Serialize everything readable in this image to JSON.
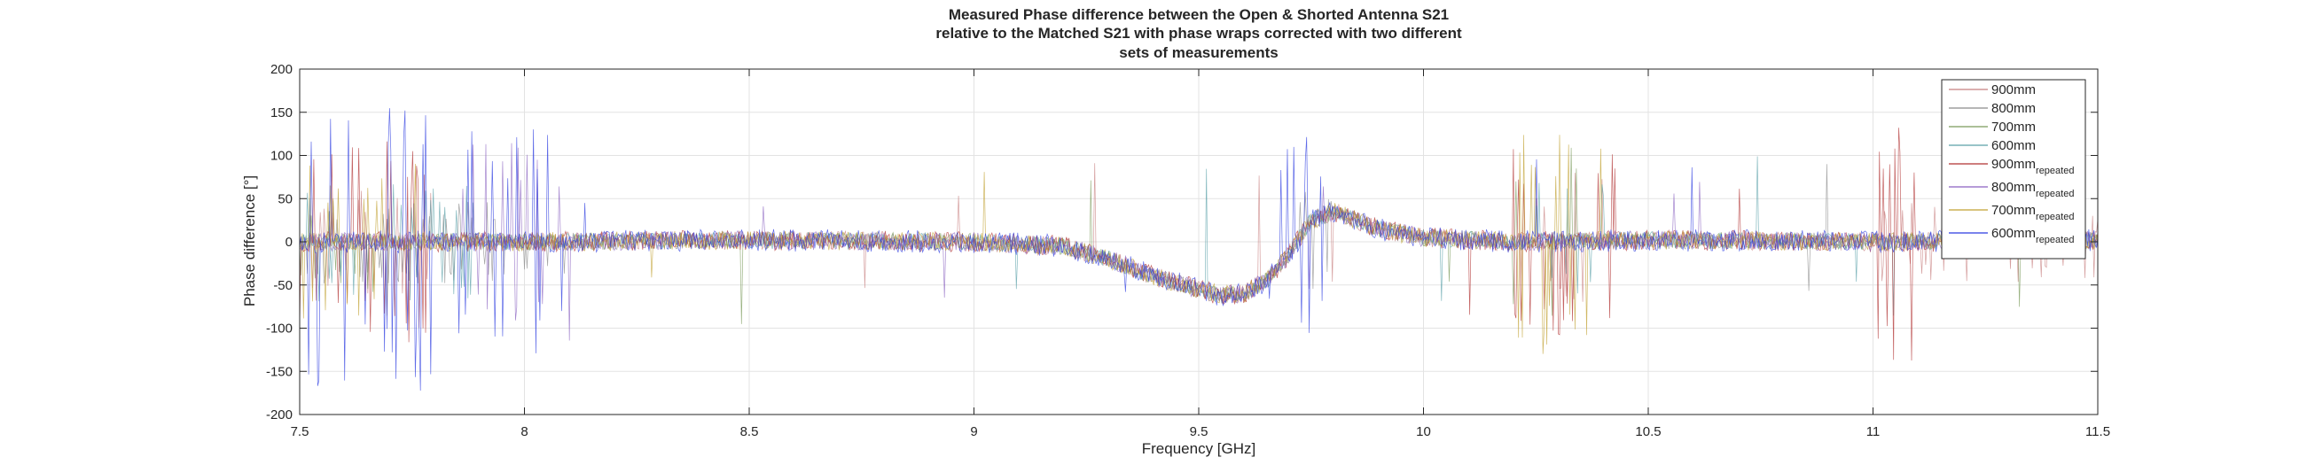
{
  "chart_data": {
    "type": "line",
    "title_lines": [
      "Measured Phase difference between the Open & Shorted Antenna S21",
      "relative to the Matched S21 with phase wraps corrected with two different",
      "sets of measurements"
    ],
    "xlabel": "Frequency [GHz]",
    "ylabel": "Phase difference [°]",
    "xlim": [
      7.5,
      11.5
    ],
    "ylim": [
      -200,
      200
    ],
    "xticks": [
      7.5,
      8,
      8.5,
      9,
      9.5,
      10,
      10.5,
      11,
      11.5
    ],
    "xtick_labels": [
      "7.5",
      "8",
      "8.5",
      "9",
      "9.5",
      "10",
      "10.5",
      "11",
      "11.5"
    ],
    "yticks": [
      200,
      150,
      100,
      50,
      0,
      -50,
      -100,
      -150,
      -200
    ],
    "ytick_labels": [
      "200",
      "150",
      "100",
      "50",
      "0",
      "-50",
      "-100",
      "-150",
      "-200"
    ],
    "grid": true,
    "legend_position": "top-right",
    "baseline_trend": {
      "x": [
        7.5,
        8.0,
        8.5,
        9.0,
        9.2,
        9.3,
        9.4,
        9.5,
        9.55,
        9.6,
        9.65,
        9.7,
        9.75,
        9.8,
        9.9,
        10.0,
        10.2,
        10.5,
        11.0,
        11.5
      ],
      "y": [
        0,
        0,
        2,
        0,
        -5,
        -20,
        -40,
        -55,
        -62,
        -60,
        -45,
        -15,
        25,
        35,
        15,
        5,
        0,
        2,
        0,
        2
      ]
    },
    "series": [
      {
        "name": "900mm",
        "name_sub": "",
        "color": "#c77f7f",
        "seed": 11,
        "noise": 11,
        "spike_regions": [
          [
            7.5,
            7.8,
            60
          ],
          [
            10.25,
            10.4,
            80
          ],
          [
            11.0,
            11.5,
            50
          ]
        ]
      },
      {
        "name": "800mm",
        "name_sub": "",
        "color": "#8a8a8a",
        "seed": 23,
        "noise": 10,
        "spike_regions": [
          [
            7.5,
            8.1,
            50
          ],
          [
            9.7,
            9.8,
            60
          ]
        ]
      },
      {
        "name": "700mm",
        "name_sub": "",
        "color": "#7a9a5a",
        "seed": 37,
        "noise": 10,
        "spike_regions": [
          [
            7.5,
            7.7,
            60
          ],
          [
            10.2,
            10.35,
            120
          ]
        ]
      },
      {
        "name": "600mm",
        "name_sub": "",
        "color": "#5aa0a8",
        "seed": 41,
        "noise": 10,
        "spike_regions": [
          [
            7.5,
            7.9,
            70
          ],
          [
            10.25,
            10.4,
            70
          ]
        ]
      },
      {
        "name": "900mm",
        "name_sub": "repeated",
        "color": "#b03030",
        "seed": 53,
        "noise": 12,
        "spike_regions": [
          [
            7.5,
            7.8,
            120
          ],
          [
            10.2,
            10.45,
            110
          ],
          [
            11.0,
            11.1,
            140
          ]
        ]
      },
      {
        "name": "800mm",
        "name_sub": "repeated",
        "color": "#8a62c0",
        "seed": 67,
        "noise": 11,
        "spike_regions": [
          [
            7.85,
            8.1,
            120
          ],
          [
            9.7,
            9.8,
            80
          ]
        ]
      },
      {
        "name": "700mm",
        "name_sub": "repeated",
        "color": "#c0a030",
        "seed": 71,
        "noise": 11,
        "spike_regions": [
          [
            7.5,
            7.7,
            90
          ],
          [
            10.2,
            10.4,
            140
          ]
        ]
      },
      {
        "name": "600mm",
        "name_sub": "repeated",
        "color": "#2a3ae0",
        "seed": 83,
        "noise": 13,
        "spike_regions": [
          [
            7.5,
            7.8,
            175
          ],
          [
            7.85,
            8.1,
            140
          ],
          [
            9.65,
            9.78,
            130
          ]
        ]
      }
    ]
  }
}
